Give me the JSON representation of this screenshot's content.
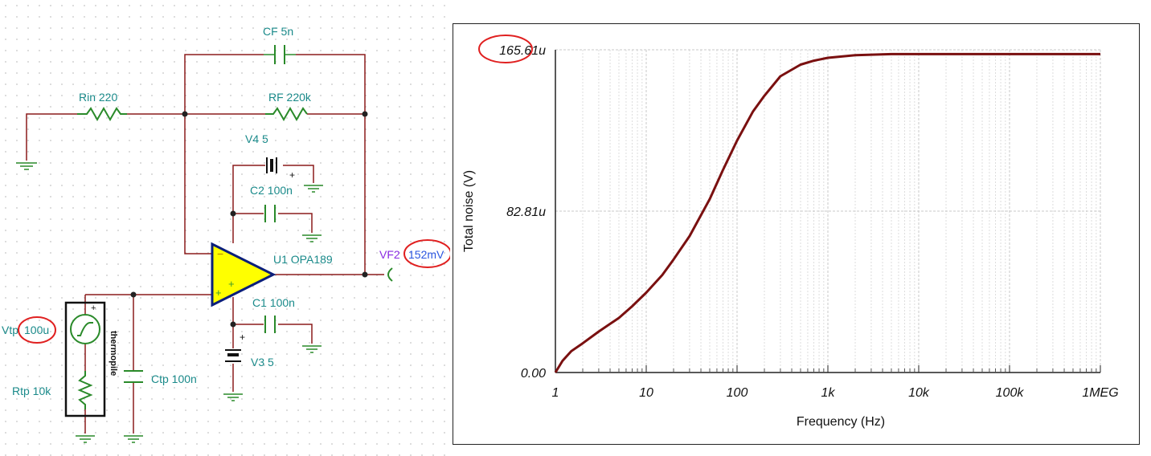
{
  "schematic": {
    "components": {
      "cf": "CF 5n",
      "rin": "Rin 220",
      "rf": "RF 220k",
      "v4": "V4 5",
      "c2": "C2 100n",
      "u1": "U1 OPA189",
      "c1": "C1 100n",
      "v3": "V3 5",
      "vtp_name": "Vtp",
      "vtp_value": "100u",
      "rtp": "Rtp 10k",
      "ctp": "Ctp 100n",
      "thermopile": "thermopile"
    },
    "probe": {
      "name": "VF2",
      "value": "152mV"
    },
    "colors": {
      "wire": "#8b1c1c",
      "label": "#1a8a8a",
      "opamp_fill": "#ffff00",
      "opamp_stroke": "#0b1f7a",
      "highlight": "#e02020"
    }
  },
  "chart_data": {
    "type": "line",
    "xlabel": "Frequency (Hz)",
    "ylabel": "Total noise (V)",
    "x_scale": "log",
    "xlim": [
      1,
      1000000
    ],
    "ylim": [
      0,
      165.61
    ],
    "y_unit": "u",
    "x_tick_labels": [
      "1",
      "10",
      "100",
      "1k",
      "10k",
      "100k",
      "1MEG"
    ],
    "y_tick_labels": [
      "0.00",
      "82.81u",
      "165.61u"
    ],
    "y_tick_values": [
      0,
      82.81,
      165.61
    ],
    "grid": true,
    "series": [
      {
        "color": "#7a1010",
        "x": [
          1,
          1.2,
          1.5,
          2,
          3,
          5,
          7,
          10,
          15,
          20,
          30,
          50,
          70,
          100,
          150,
          200,
          300,
          500,
          700,
          1000,
          2000,
          5000,
          10000,
          100000,
          1000000
        ],
        "y": [
          0,
          6,
          11,
          15,
          21,
          28,
          34,
          41,
          50,
          58,
          70,
          89,
          104,
          119,
          134,
          142,
          152,
          158,
          160,
          161.5,
          162.8,
          163.4,
          163.4,
          163.4,
          163.4
        ]
      }
    ],
    "highlighted_label": "165.61u"
  }
}
